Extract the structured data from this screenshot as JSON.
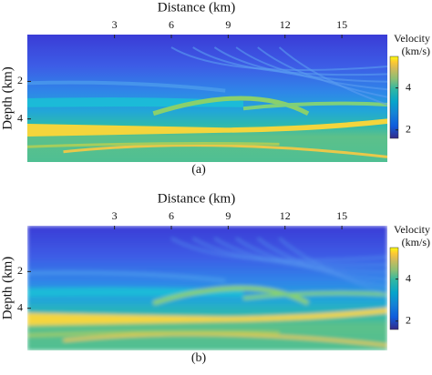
{
  "chart_data": [
    {
      "type": "heatmap",
      "xlabel": "Distance (km)",
      "ylabel": "Depth (km)",
      "caption": "(a)",
      "xlim": [
        -1.6,
        17.4
      ],
      "xticks": [
        3,
        6,
        9,
        12,
        15
      ],
      "ylim": [
        -0.5,
        6.3
      ],
      "yticks": [
        2,
        4
      ],
      "colorbar_label": [
        "Velocity",
        "(km/s)"
      ],
      "clim": [
        1.6,
        5.5
      ],
      "colorbar_ticks": [
        2,
        4
      ],
      "colormap": "parula",
      "smoothed": false
    },
    {
      "type": "heatmap",
      "xlabel": "Distance (km)",
      "ylabel": "Depth (km)",
      "caption": "(b)",
      "xlim": [
        -1.6,
        17.4
      ],
      "xticks": [
        3,
        6,
        9,
        12,
        15
      ],
      "ylim": [
        -0.5,
        6.3
      ],
      "yticks": [
        2,
        4
      ],
      "colorbar_label": [
        "Velocity",
        "(km/s)"
      ],
      "clim": [
        1.6,
        5.5
      ],
      "colorbar_ticks": [
        2,
        4
      ],
      "colormap": "parula",
      "smoothed": true
    }
  ]
}
